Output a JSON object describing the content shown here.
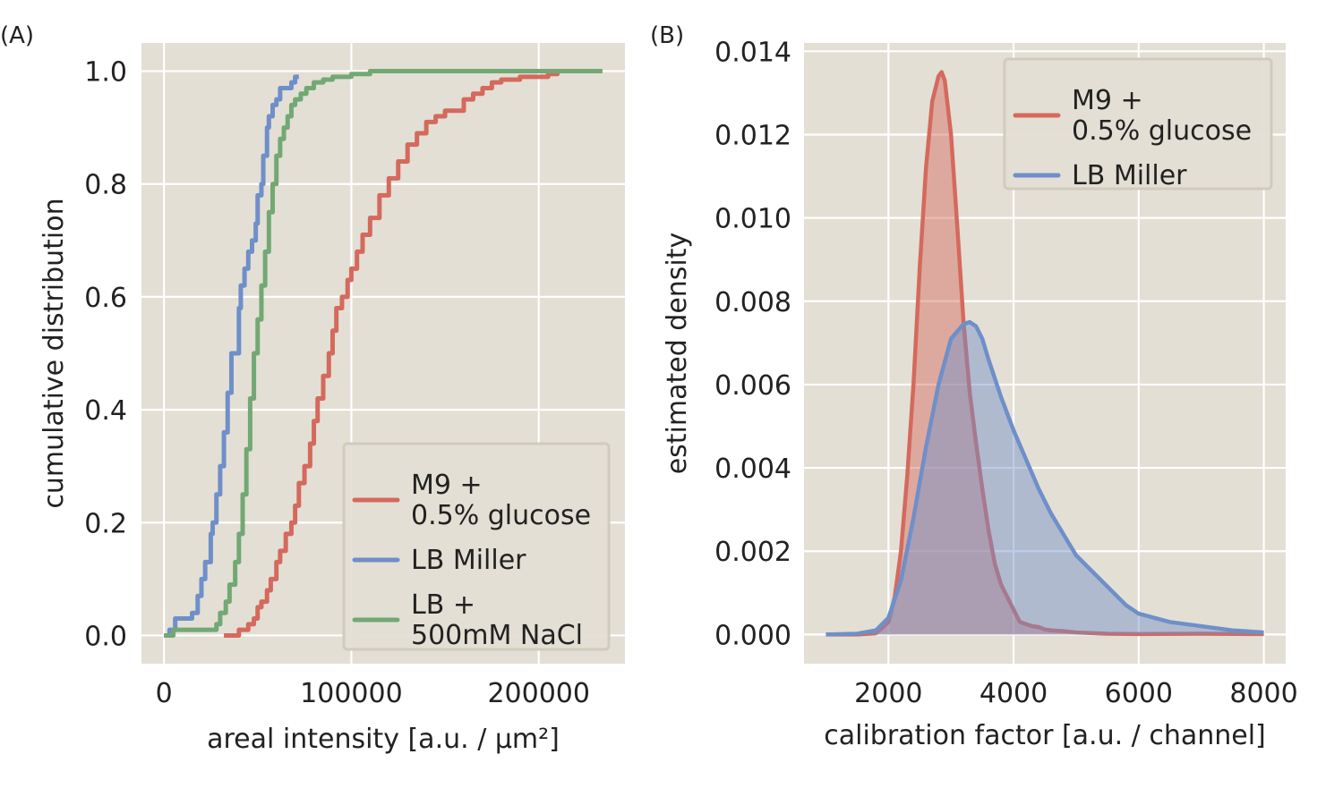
{
  "chart_data": [
    {
      "type": "line",
      "panel_label": "(A)",
      "xlabel": "areal intensity [a.u. / µm²]",
      "ylabel": "cumulative distribution",
      "xlim": [
        -12000,
        246000
      ],
      "ylim": [
        -0.05,
        1.05
      ],
      "xticks": [
        0,
        100000,
        200000
      ],
      "xtick_labels": [
        "0",
        "100000",
        "200000"
      ],
      "yticks": [
        0.0,
        0.2,
        0.4,
        0.6,
        0.8,
        1.0
      ],
      "ytick_labels": [
        "0.0",
        "0.2",
        "0.4",
        "0.6",
        "0.8",
        "1.0"
      ],
      "grid": true,
      "legend_position": "lower-right",
      "series": [
        {
          "name": "M9 +\n0.5% glucose",
          "color": "#d5695d",
          "x": [
            32000,
            40000,
            45000,
            48000,
            50000,
            52000,
            55000,
            57000,
            60000,
            62000,
            65000,
            68000,
            70000,
            72000,
            75000,
            78000,
            80000,
            82000,
            85000,
            88000,
            90000,
            92000,
            95000,
            98000,
            100000,
            103000,
            106000,
            110000,
            115000,
            120000,
            125000,
            130000,
            135000,
            140000,
            145000,
            150000,
            155000,
            160000,
            165000,
            170000,
            175000,
            180000,
            190000,
            200000,
            205000,
            210000,
            216000
          ],
          "y": [
            0.0,
            0.01,
            0.02,
            0.03,
            0.05,
            0.06,
            0.08,
            0.1,
            0.13,
            0.15,
            0.18,
            0.2,
            0.23,
            0.27,
            0.3,
            0.34,
            0.38,
            0.42,
            0.46,
            0.5,
            0.54,
            0.58,
            0.6,
            0.63,
            0.65,
            0.68,
            0.71,
            0.74,
            0.78,
            0.81,
            0.84,
            0.87,
            0.89,
            0.91,
            0.92,
            0.93,
            0.93,
            0.95,
            0.96,
            0.97,
            0.98,
            0.985,
            0.99,
            0.99,
            0.995,
            1.0,
            1.0
          ]
        },
        {
          "name": "LB Miller",
          "color": "#6f8fc9",
          "x": [
            0,
            3000,
            6000,
            8000,
            10000,
            13000,
            15000,
            18000,
            20000,
            22000,
            25000,
            26000,
            28000,
            30000,
            32000,
            34000,
            36000,
            38000,
            40000,
            41000,
            43000,
            45000,
            47000,
            49000,
            50000,
            52000,
            53000,
            55000,
            56000,
            58000,
            60000,
            62000,
            65000,
            68000,
            70000,
            72000
          ],
          "y": [
            0.0,
            0.01,
            0.03,
            0.03,
            0.03,
            0.03,
            0.04,
            0.07,
            0.1,
            0.13,
            0.18,
            0.2,
            0.25,
            0.3,
            0.36,
            0.43,
            0.5,
            0.5,
            0.58,
            0.62,
            0.65,
            0.68,
            0.7,
            0.73,
            0.78,
            0.8,
            0.85,
            0.9,
            0.92,
            0.94,
            0.95,
            0.97,
            0.97,
            0.98,
            0.99,
            0.99
          ]
        },
        {
          "name": "LB +\n500mM NaCl",
          "color": "#72a874",
          "x": [
            0,
            5000,
            15000,
            25000,
            28000,
            30000,
            33000,
            35000,
            38000,
            40000,
            42000,
            44000,
            46000,
            48000,
            50000,
            52000,
            54000,
            56000,
            58000,
            60000,
            62000,
            64000,
            66000,
            68000,
            70000,
            73000,
            76000,
            80000,
            85000,
            90000,
            95000,
            100000,
            110000,
            120000,
            140000,
            180000,
            234000
          ],
          "y": [
            0.0,
            0.01,
            0.01,
            0.01,
            0.02,
            0.04,
            0.06,
            0.09,
            0.13,
            0.18,
            0.25,
            0.33,
            0.42,
            0.5,
            0.56,
            0.62,
            0.68,
            0.75,
            0.8,
            0.85,
            0.88,
            0.9,
            0.92,
            0.94,
            0.95,
            0.96,
            0.97,
            0.98,
            0.985,
            0.99,
            0.99,
            0.995,
            1.0,
            1.0,
            1.0,
            1.0,
            1.0
          ]
        }
      ]
    },
    {
      "type": "area",
      "panel_label": "(B)",
      "xlabel": "calibration factor [a.u. / channel]",
      "ylabel": "estimated density",
      "xlim": [
        650,
        8350
      ],
      "ylim": [
        -0.0007,
        0.0142
      ],
      "xticks": [
        2000,
        4000,
        6000,
        8000
      ],
      "xtick_labels": [
        "2000",
        "4000",
        "6000",
        "8000"
      ],
      "yticks": [
        0.0,
        0.002,
        0.004,
        0.006,
        0.008,
        0.01,
        0.012,
        0.014
      ],
      "ytick_labels": [
        "0.000",
        "0.002",
        "0.004",
        "0.006",
        "0.008",
        "0.010",
        "0.012",
        "0.014"
      ],
      "grid": true,
      "legend_position": "upper-right",
      "series": [
        {
          "name": "M9 +\n0.5% glucose",
          "color": "#d5695d",
          "x": [
            1000,
            1500,
            1800,
            2000,
            2100,
            2200,
            2300,
            2400,
            2500,
            2600,
            2700,
            2800,
            2850,
            2900,
            3000,
            3100,
            3200,
            3300,
            3400,
            3500,
            3600,
            3700,
            3800,
            3900,
            4000,
            4100,
            4200,
            4300,
            4400,
            4500,
            4600,
            4800,
            5000,
            5500,
            6000,
            7000,
            8000
          ],
          "y": [
            0.0,
            0.0,
            3e-05,
            0.0003,
            0.0009,
            0.002,
            0.0038,
            0.006,
            0.0088,
            0.0112,
            0.0128,
            0.0134,
            0.0135,
            0.0133,
            0.012,
            0.0098,
            0.0075,
            0.0058,
            0.0046,
            0.0035,
            0.0025,
            0.0017,
            0.0012,
            0.0009,
            0.0006,
            0.0003,
            0.00025,
            0.0002,
            0.00018,
            0.00012,
            0.0001,
            8e-05,
            5e-05,
            2e-05,
            1e-05,
            2e-05,
            1e-05
          ]
        },
        {
          "name": "LB Miller",
          "color": "#6f8fc9",
          "x": [
            1000,
            1500,
            1800,
            2000,
            2200,
            2400,
            2600,
            2800,
            3000,
            3200,
            3300,
            3400,
            3500,
            3600,
            3800,
            4000,
            4200,
            4400,
            4600,
            4800,
            5000,
            5200,
            5400,
            5600,
            5800,
            6000,
            6500,
            7000,
            7500,
            8000
          ],
          "y": [
            0.0,
            2e-05,
            0.0001,
            0.0004,
            0.0013,
            0.0028,
            0.0045,
            0.006,
            0.0071,
            0.00745,
            0.0075,
            0.0074,
            0.0071,
            0.0066,
            0.0057,
            0.0049,
            0.0042,
            0.0035,
            0.0029,
            0.0024,
            0.0019,
            0.0016,
            0.0013,
            0.001,
            0.0007,
            0.0005,
            0.0003,
            0.0002,
            0.0001,
            5e-05
          ]
        }
      ]
    }
  ]
}
